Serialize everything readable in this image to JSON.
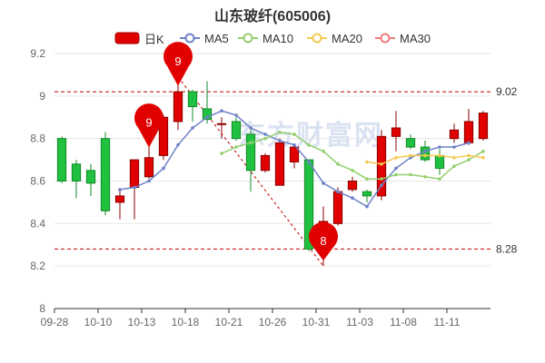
{
  "chart_data": {
    "type": "candlestick",
    "title": "山东玻纤(605006)",
    "legend": [
      {
        "name": "日K",
        "color": "#e00000",
        "shape": "candle"
      },
      {
        "name": "MA5",
        "color": "#6f82c8",
        "shape": "circle-line"
      },
      {
        "name": "MA10",
        "color": "#93cf6e",
        "shape": "circle-line"
      },
      {
        "name": "MA20",
        "color": "#f5c94f",
        "shape": "circle-line"
      },
      {
        "name": "MA30",
        "color": "#f07b7b",
        "shape": "circle-line"
      }
    ],
    "up_color": "#e00000",
    "down_color": "#20c040",
    "x_ticks": [
      "09-28",
      "10-10",
      "10-13",
      "10-18",
      "10-21",
      "10-26",
      "10-31",
      "11-03",
      "11-08",
      "11-11"
    ],
    "x_tick_indices": [
      0,
      3,
      6,
      9,
      12,
      15,
      18,
      21,
      24,
      27
    ],
    "y_ticks": [
      "9.2",
      "9",
      "8.8",
      "8.6",
      "8.4",
      "8.2",
      "8"
    ],
    "ylim": [
      8,
      9.2
    ],
    "candles": [
      {
        "open": 8.8,
        "close": 8.6,
        "high": 8.81,
        "low": 8.59
      },
      {
        "open": 8.68,
        "close": 8.6,
        "high": 8.7,
        "low": 8.52
      },
      {
        "open": 8.65,
        "close": 8.59,
        "high": 8.68,
        "low": 8.53
      },
      {
        "open": 8.8,
        "close": 8.46,
        "high": 8.83,
        "low": 8.44
      },
      {
        "open": 8.5,
        "close": 8.53,
        "high": 8.56,
        "low": 8.42
      },
      {
        "open": 8.57,
        "close": 8.7,
        "high": 8.7,
        "low": 8.42
      },
      {
        "open": 8.62,
        "close": 8.71,
        "high": 8.8,
        "low": 8.61
      },
      {
        "open": 8.72,
        "close": 8.9,
        "high": 8.91,
        "low": 8.7
      },
      {
        "open": 8.88,
        "close": 9.02,
        "high": 9.09,
        "low": 8.84
      },
      {
        "open": 9.02,
        "close": 8.95,
        "high": 9.03,
        "low": 8.88
      },
      {
        "open": 8.94,
        "close": 8.89,
        "high": 9.07,
        "low": 8.87
      },
      {
        "open": 8.87,
        "close": 8.87,
        "high": 8.9,
        "low": 8.8
      },
      {
        "open": 8.88,
        "close": 8.8,
        "high": 8.9,
        "low": 8.79
      },
      {
        "open": 8.82,
        "close": 8.65,
        "high": 8.84,
        "low": 8.55
      },
      {
        "open": 8.65,
        "close": 8.72,
        "high": 8.73,
        "low": 8.64
      },
      {
        "open": 8.58,
        "close": 8.78,
        "high": 8.8,
        "low": 8.58
      },
      {
        "open": 8.69,
        "close": 8.76,
        "high": 8.77,
        "low": 8.66
      },
      {
        "open": 8.7,
        "close": 8.28,
        "high": 8.7,
        "low": 8.27
      },
      {
        "open": 8.35,
        "close": 8.41,
        "high": 8.48,
        "low": 8.2
      },
      {
        "open": 8.4,
        "close": 8.55,
        "high": 8.57,
        "low": 8.39
      },
      {
        "open": 8.56,
        "close": 8.6,
        "high": 8.62,
        "low": 8.55
      },
      {
        "open": 8.55,
        "close": 8.53,
        "high": 8.56,
        "low": 8.5
      },
      {
        "open": 8.53,
        "close": 8.81,
        "high": 8.84,
        "low": 8.51
      },
      {
        "open": 8.81,
        "close": 8.85,
        "high": 8.93,
        "low": 8.74
      },
      {
        "open": 8.8,
        "close": 8.76,
        "high": 8.82,
        "low": 8.75
      },
      {
        "open": 8.76,
        "close": 8.7,
        "high": 8.79,
        "low": 8.69
      },
      {
        "open": 8.72,
        "close": 8.66,
        "high": 8.75,
        "low": 8.63
      },
      {
        "open": 8.8,
        "close": 8.84,
        "high": 8.87,
        "low": 8.78
      },
      {
        "open": 8.78,
        "close": 8.88,
        "high": 8.94,
        "low": 8.77
      },
      {
        "open": 8.8,
        "close": 8.92,
        "high": 8.93,
        "low": 8.79
      }
    ],
    "series": [
      {
        "name": "MA5",
        "start_index": 4,
        "values": [
          8.56,
          8.57,
          8.6,
          8.66,
          8.77,
          8.85,
          8.9,
          8.93,
          8.91,
          8.85,
          8.82,
          8.79,
          8.77,
          8.69,
          8.59,
          8.55,
          8.52,
          8.48,
          8.58,
          8.66,
          8.71,
          8.74,
          8.76,
          8.76,
          8.78
        ]
      },
      {
        "name": "MA10",
        "start_index": 11,
        "values": [
          8.73,
          8.76,
          8.78,
          8.8,
          8.83,
          8.82,
          8.77,
          8.74,
          8.68,
          8.65,
          8.61,
          8.61,
          8.63,
          8.63,
          8.62,
          8.61,
          8.67,
          8.7,
          8.74
        ]
      },
      {
        "name": "MA20",
        "start_index": 21,
        "values": [
          8.69,
          8.68,
          8.71,
          8.72,
          8.72,
          8.72,
          8.71,
          8.72,
          8.71
        ]
      }
    ],
    "mark_lines": [
      {
        "value": 9.02,
        "label": "9.02"
      },
      {
        "value": 8.28,
        "label": "8.28"
      }
    ],
    "mark_points": [
      {
        "label": "9",
        "index": 8,
        "value": 9.09
      },
      {
        "label": "9",
        "index": 6,
        "value": 8.8
      },
      {
        "label": "8",
        "index": 18,
        "value": 8.2
      }
    ],
    "watermark": "东方财富网"
  }
}
